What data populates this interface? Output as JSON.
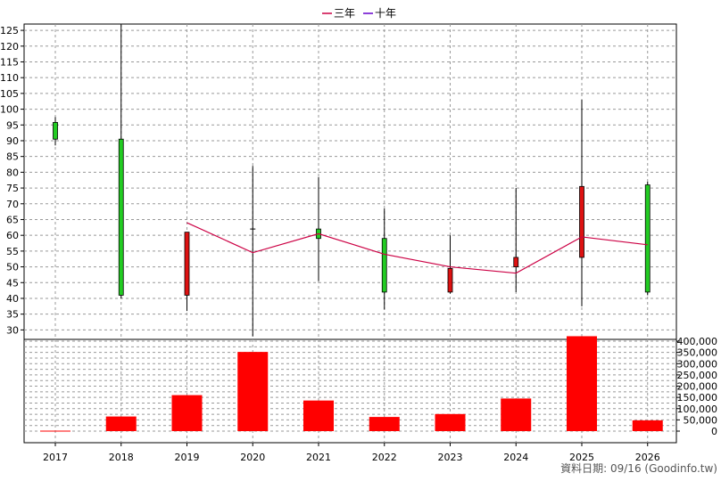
{
  "colors": {
    "up": "#22cc22",
    "down": "#dd1111",
    "volume": "#ff0000",
    "ma3": "#cc0044",
    "ma10": "#6600cc",
    "grid": "#999999",
    "axis": "#000000",
    "background": "#ffffff"
  },
  "chart_data": {
    "type": "candlestick",
    "legend": [
      {
        "label": "三年",
        "color": "#cc0044",
        "key": "ma3"
      },
      {
        "label": "十年",
        "color": "#6600cc",
        "key": "ma10"
      }
    ],
    "legend_position": "top-center",
    "grid": true,
    "categories": [
      "2017",
      "2018",
      "2019",
      "2020",
      "2021",
      "2022",
      "2023",
      "2024",
      "2025",
      "2026"
    ],
    "price_axis": {
      "ticks": [
        "125",
        "120",
        "115",
        "110",
        "105",
        "100",
        "95",
        "90",
        "85",
        "80",
        "75",
        "70",
        "65",
        "60",
        "55",
        "50",
        "45",
        "40",
        "35",
        "30"
      ],
      "range": [
        27,
        127
      ]
    },
    "volume_axis": {
      "ticks": [
        "400,000",
        "350,000",
        "300,000",
        "250,000",
        "200,000",
        "150,000",
        "100,000",
        "50,000",
        "0"
      ],
      "range": [
        0,
        400000
      ]
    },
    "candles": [
      {
        "year": "2017",
        "open": 90.5,
        "high": 97.5,
        "low": 88.5,
        "close": 95.8
      },
      {
        "year": "2018",
        "open": 41.0,
        "high": 127.0,
        "low": 40.0,
        "close": 90.5
      },
      {
        "year": "2019",
        "open": 61.0,
        "high": 61.0,
        "low": 36.0,
        "close": 41.0
      },
      {
        "year": "2020",
        "open": 62.0,
        "high": 82.0,
        "low": 28.0,
        "close": 62.0
      },
      {
        "year": "2021",
        "open": 59.0,
        "high": 78.5,
        "low": 45.5,
        "close": 62.0
      },
      {
        "year": "2022",
        "open": 42.0,
        "high": 68.5,
        "low": 36.5,
        "close": 59.0
      },
      {
        "year": "2023",
        "open": 49.5,
        "high": 60.0,
        "low": 41.5,
        "close": 42.0
      },
      {
        "year": "2024",
        "open": 53.0,
        "high": 75.0,
        "low": 42.0,
        "close": 50.0
      },
      {
        "year": "2025",
        "open": 75.5,
        "high": 103.0,
        "low": 37.5,
        "close": 53.0
      },
      {
        "year": "2026",
        "open": 42.0,
        "high": 77.0,
        "low": 41.0,
        "close": 76.0
      }
    ],
    "ma3": [
      null,
      null,
      64.0,
      54.5,
      60.5,
      54.0,
      50.0,
      48.0,
      59.5,
      57.0
    ],
    "volume": [
      2000,
      65000,
      160000,
      352000,
      136000,
      63000,
      76000,
      145000,
      422000,
      48000
    ],
    "footer": "資料日期: 09/16  (Goodinfo.tw)"
  }
}
